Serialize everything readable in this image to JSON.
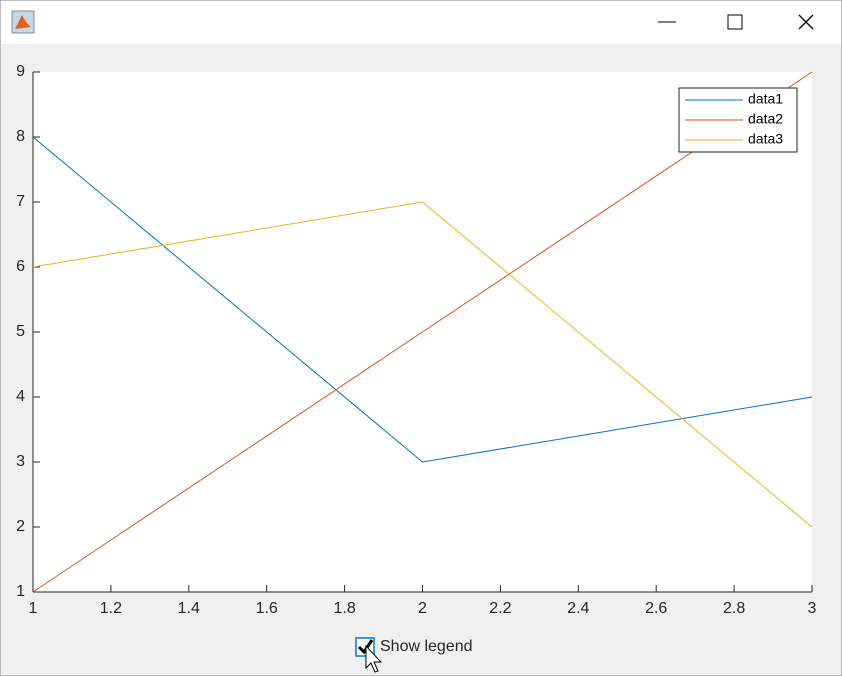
{
  "chart_data": {
    "type": "line",
    "x": [
      1,
      2,
      3
    ],
    "series": [
      {
        "name": "data1",
        "color": "#0072bd",
        "values": [
          8,
          3,
          4
        ]
      },
      {
        "name": "data2",
        "color": "#d95319",
        "values": [
          1,
          5,
          9
        ]
      },
      {
        "name": "data3",
        "color": "#edb120",
        "values": [
          6,
          7,
          2
        ]
      }
    ],
    "xlim": [
      1,
      3
    ],
    "xticks": [
      1,
      1.2,
      1.4,
      1.6,
      1.8,
      2,
      2.2,
      2.4,
      2.6,
      2.8,
      3
    ],
    "ylim": [
      1,
      9
    ],
    "yticks": [
      1,
      2,
      3,
      4,
      5,
      6,
      7,
      8,
      9
    ],
    "grid": false,
    "legend": "upper right"
  },
  "controls": {
    "checkbox_label": "Show legend",
    "checked": true
  }
}
